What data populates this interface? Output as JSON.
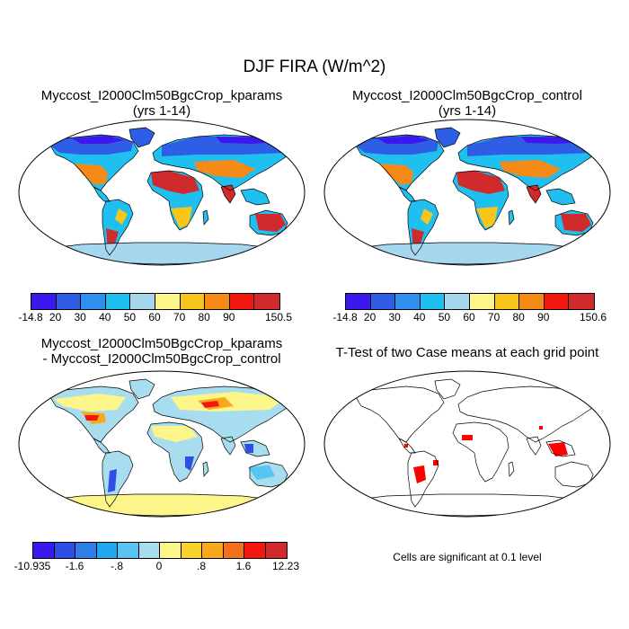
{
  "title": "DJF FIRA (W/m^2)",
  "panels": [
    {
      "title_line1": "Myccost_I2000Clm50BgcCrop_kparams",
      "title_line2": "(yrs 1-14)"
    },
    {
      "title_line1": "Myccost_I2000Clm50BgcCrop_control",
      "title_line2": "(yrs 1-14)"
    },
    {
      "title_line1": "Myccost_I2000Clm50BgcCrop_kparams",
      "title_line2": "- Myccost_I2000Clm50BgcCrop_control"
    },
    {
      "title_line1": "T-Test of two Case means at each grid point",
      "title_line2": ""
    }
  ],
  "colorbars": [
    {
      "colors": [
        "#3a18ee",
        "#2f5ee6",
        "#2f8fee",
        "#1fc0f0",
        "#a5d8ef",
        "#fbf58a",
        "#f8c51a",
        "#f58a16",
        "#f2170f",
        "#d12a2c"
      ],
      "labels": [
        "-14.8",
        "20",
        "30",
        "40",
        "50",
        "60",
        "70",
        "80",
        "90",
        "150.5"
      ]
    },
    {
      "colors": [
        "#3a18ee",
        "#2f5ee6",
        "#2f8fee",
        "#1fc0f0",
        "#a5d8ef",
        "#fbf58a",
        "#f8c51a",
        "#f58a16",
        "#f2170f",
        "#d12a2c"
      ],
      "labels": [
        "-14.8",
        "20",
        "30",
        "40",
        "50",
        "60",
        "70",
        "80",
        "90",
        "150.6"
      ]
    },
    {
      "colors": [
        "#3a18ee",
        "#2f4ee6",
        "#2f7ee8",
        "#1fa8ee",
        "#58c4f0",
        "#a8dcef",
        "#fbf58a",
        "#f8d22a",
        "#f8a81a",
        "#f5701a",
        "#f2170f",
        "#d12a2c"
      ],
      "labels": [
        "-10.935",
        "-1.6",
        "-.8",
        "0",
        ".8",
        "1.6",
        "12.23"
      ]
    }
  ],
  "note": "Cells are significant at 0.1 level"
}
